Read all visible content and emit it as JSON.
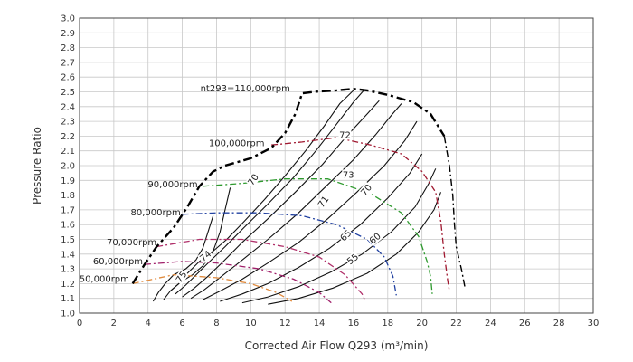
{
  "chart_data": {
    "type": "line",
    "xlabel": "Corrected Air Flow Q293 (m³/min)",
    "ylabel": "Pressure Ratio",
    "xlim": [
      0,
      30
    ],
    "ylim": [
      1.0,
      3.0
    ],
    "xticks": [
      "0",
      "2",
      "4",
      "6",
      "8",
      "10",
      "12",
      "14",
      "16",
      "18",
      "20",
      "22",
      "24",
      "26",
      "28",
      "30"
    ],
    "yticks": [
      "1.0",
      "1.1",
      "1.2",
      "1.3",
      "1.4",
      "1.5",
      "1.6",
      "1.7",
      "1.8",
      "1.9",
      "2.0",
      "2.1",
      "2.2",
      "2.3",
      "2.4",
      "2.5",
      "2.6",
      "2.7",
      "2.8",
      "2.9",
      "3.0"
    ],
    "grid": true,
    "surge_line": [
      [
        3.1,
        1.2
      ],
      [
        3.8,
        1.33
      ],
      [
        4.5,
        1.45
      ],
      [
        5.5,
        1.58
      ],
      [
        6.3,
        1.72
      ],
      [
        7.0,
        1.86
      ],
      [
        7.8,
        1.96
      ],
      [
        8.5,
        2.0
      ],
      [
        10.0,
        2.05
      ],
      [
        11.2,
        2.12
      ],
      [
        12.0,
        2.22
      ],
      [
        12.6,
        2.35
      ],
      [
        13.0,
        2.49
      ],
      [
        13.7,
        2.5
      ],
      [
        15.0,
        2.51
      ],
      [
        16.0,
        2.52
      ],
      [
        16.8,
        2.51
      ],
      [
        18.0,
        2.48
      ],
      [
        19.5,
        2.43
      ],
      [
        20.5,
        2.35
      ],
      [
        21.3,
        2.2
      ]
    ],
    "choke_line": [
      [
        21.3,
        2.2
      ],
      [
        21.6,
        2.0
      ],
      [
        21.8,
        1.8
      ],
      [
        21.9,
        1.6
      ],
      [
        22.0,
        1.45
      ],
      [
        22.3,
        1.3
      ],
      [
        22.5,
        1.18
      ]
    ],
    "speed_lines": [
      {
        "label": "50,000rpm",
        "color": "#e08a3c",
        "points": [
          [
            3.1,
            1.2
          ],
          [
            5.5,
            1.26
          ],
          [
            8.0,
            1.24
          ],
          [
            10.0,
            1.2
          ],
          [
            11.5,
            1.14
          ],
          [
            12.4,
            1.08
          ]
        ]
      },
      {
        "label": "60,000rpm",
        "color": "#a0206a",
        "points": [
          [
            3.8,
            1.33
          ],
          [
            6.0,
            1.35
          ],
          [
            8.0,
            1.34
          ],
          [
            10.5,
            1.3
          ],
          [
            12.5,
            1.23
          ],
          [
            14.0,
            1.14
          ],
          [
            14.7,
            1.07
          ]
        ]
      },
      {
        "label": "70,000rpm",
        "color": "#b0306a",
        "points": [
          [
            4.5,
            1.45
          ],
          [
            7.0,
            1.5
          ],
          [
            9.5,
            1.5
          ],
          [
            12.0,
            1.45
          ],
          [
            14.0,
            1.38
          ],
          [
            15.5,
            1.26
          ],
          [
            16.5,
            1.13
          ],
          [
            16.7,
            1.08
          ]
        ]
      },
      {
        "label": "80,000rpm",
        "color": "#2040a0",
        "points": [
          [
            6.0,
            1.67
          ],
          [
            8.0,
            1.68
          ],
          [
            10.5,
            1.68
          ],
          [
            13.0,
            1.66
          ],
          [
            15.0,
            1.6
          ],
          [
            16.8,
            1.5
          ],
          [
            17.8,
            1.38
          ],
          [
            18.3,
            1.25
          ],
          [
            18.5,
            1.12
          ]
        ]
      },
      {
        "label": "90,000rpm",
        "color": "#2e9a2e",
        "points": [
          [
            7.2,
            1.86
          ],
          [
            9.5,
            1.88
          ],
          [
            12.0,
            1.91
          ],
          [
            14.5,
            1.91
          ],
          [
            17.0,
            1.81
          ],
          [
            18.8,
            1.68
          ],
          [
            19.8,
            1.52
          ],
          [
            20.3,
            1.35
          ],
          [
            20.5,
            1.25
          ],
          [
            20.6,
            1.13
          ]
        ]
      },
      {
        "label": "100,000rpm",
        "color": "#a01830",
        "points": [
          [
            11.2,
            2.14
          ],
          [
            13.0,
            2.16
          ],
          [
            15.0,
            2.19
          ],
          [
            17.0,
            2.14
          ],
          [
            18.8,
            2.08
          ],
          [
            20.0,
            1.96
          ],
          [
            20.8,
            1.82
          ],
          [
            21.1,
            1.62
          ],
          [
            21.3,
            1.4
          ],
          [
            21.5,
            1.22
          ],
          [
            21.6,
            1.15
          ]
        ]
      },
      {
        "label": "nt293=110,000rpm",
        "color": "#000000",
        "points": []
      }
    ],
    "efficiency_labels": [
      "75",
      "74",
      "73",
      "72",
      "71",
      "70",
      "70",
      "65",
      "60",
      "55"
    ]
  }
}
